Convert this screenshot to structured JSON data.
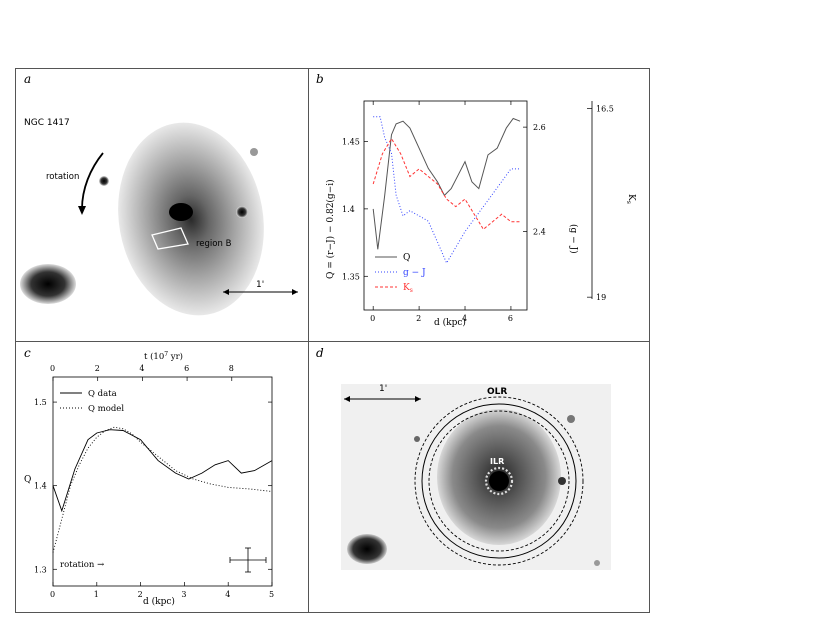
{
  "panels": {
    "a": {
      "label": "a",
      "galaxy_name": "NGC 1417",
      "rotation_label": "rotation",
      "region_label": "region B",
      "scale_label": "1'"
    },
    "b": {
      "label": "b",
      "ylabel_left": "Q = (r−J) − 0.82(g−i)",
      "ylabel_mid": "(g − J)",
      "ylabel_right": "K",
      "ylabel_right_sub": "s",
      "xlabel": "d (kpc)",
      "legend": [
        "Q",
        "g − J",
        "K"
      ],
      "legend_ks_sub": "s"
    },
    "c": {
      "label": "c",
      "top_axis_label": "t (10",
      "top_axis_exp": "7",
      "top_axis_unit": " yr)",
      "ylabel": "Q",
      "xlabel": "d (kpc)",
      "legend": [
        "Q data",
        "Q model"
      ],
      "rotation_label": "rotation →"
    },
    "d": {
      "label": "d",
      "scale_label": "1'",
      "olr_label": "OLR",
      "ilr_label": "ILR"
    }
  },
  "colors": {
    "q": "#555555",
    "gj": "#3344ff",
    "ks": "#ff3333"
  },
  "chart_data": [
    {
      "panel": "b",
      "type": "line",
      "xlabel": "d (kpc)",
      "xlim": [
        -0.4,
        6.7
      ],
      "x_ticks": [
        0,
        2,
        4,
        6
      ],
      "axes": {
        "left": {
          "label": "Q = (r−J) − 0.82(g−i)",
          "lim": [
            1.325,
            1.48
          ],
          "ticks": [
            1.35,
            1.4,
            1.45
          ]
        },
        "mid": {
          "label": "(g − J)",
          "lim": [
            2.25,
            2.65
          ],
          "ticks": [
            2.4,
            2.6
          ]
        },
        "right": {
          "label": "Ks",
          "lim": [
            19.17,
            16.4
          ],
          "ticks": [
            16.5,
            19
          ]
        }
      },
      "series": [
        {
          "name": "Q",
          "axis": "left",
          "style": "solid",
          "x": [
            0,
            0.2,
            0.5,
            0.8,
            1.0,
            1.3,
            1.6,
            2.0,
            2.4,
            2.8,
            3.1,
            3.4,
            3.7,
            4.0,
            4.3,
            4.6,
            5.0,
            5.4,
            5.8,
            6.1,
            6.4
          ],
          "y": [
            1.4,
            1.37,
            1.41,
            1.455,
            1.463,
            1.465,
            1.46,
            1.445,
            1.43,
            1.42,
            1.41,
            1.415,
            1.425,
            1.435,
            1.42,
            1.415,
            1.44,
            1.445,
            1.46,
            1.467,
            1.465
          ]
        },
        {
          "name": "g − J",
          "axis": "mid",
          "style": "dotted",
          "x": [
            0,
            0.3,
            0.5,
            0.8,
            1.0,
            1.3,
            1.6,
            2.0,
            2.4,
            2.8,
            3.2,
            3.6,
            4.0,
            4.5,
            5.0,
            5.5,
            6.0,
            6.4
          ],
          "y": [
            2.62,
            2.62,
            2.58,
            2.55,
            2.47,
            2.43,
            2.44,
            2.43,
            2.42,
            2.38,
            2.34,
            2.37,
            2.4,
            2.43,
            2.46,
            2.49,
            2.52,
            2.52
          ]
        },
        {
          "name": "Ks",
          "axis": "right",
          "style": "dashed",
          "x": [
            0,
            0.4,
            0.8,
            1.2,
            1.6,
            2.0,
            2.4,
            2.8,
            3.2,
            3.6,
            4.0,
            4.4,
            4.8,
            5.2,
            5.6,
            6.0,
            6.4
          ],
          "y": [
            17.5,
            17.1,
            16.9,
            17.1,
            17.4,
            17.3,
            17.4,
            17.5,
            17.7,
            17.8,
            17.7,
            17.9,
            18.1,
            18.0,
            17.9,
            18.0,
            18.0
          ]
        }
      ]
    },
    {
      "panel": "c",
      "type": "line",
      "xlabel": "d (kpc)",
      "ylabel": "Q",
      "xlim": [
        0,
        5
      ],
      "ylim": [
        1.28,
        1.53
      ],
      "x_ticks": [
        0,
        1,
        2,
        3,
        4,
        5
      ],
      "y_ticks": [
        1.3,
        1.4,
        1.5
      ],
      "top_axis": {
        "label": "t (10^7 yr)",
        "ticks": [
          0,
          2,
          4,
          6,
          8
        ],
        "lim": [
          0,
          9.8
        ]
      },
      "series": [
        {
          "name": "Q data",
          "style": "solid",
          "x": [
            0,
            0.2,
            0.5,
            0.8,
            1.0,
            1.3,
            1.6,
            2.0,
            2.4,
            2.8,
            3.1,
            3.4,
            3.7,
            4.0,
            4.3,
            4.6,
            5.0
          ],
          "y": [
            1.4,
            1.37,
            1.42,
            1.455,
            1.463,
            1.467,
            1.466,
            1.455,
            1.43,
            1.415,
            1.408,
            1.415,
            1.425,
            1.43,
            1.415,
            1.418,
            1.43
          ]
        },
        {
          "name": "Q model",
          "style": "dotted",
          "x": [
            0,
            0.2,
            0.4,
            0.6,
            0.8,
            1.0,
            1.2,
            1.4,
            1.6,
            1.8,
            2.0,
            2.4,
            2.8,
            3.2,
            3.6,
            4.0,
            4.5,
            5.0
          ],
          "y": [
            1.32,
            1.36,
            1.4,
            1.425,
            1.445,
            1.458,
            1.466,
            1.47,
            1.468,
            1.462,
            1.452,
            1.435,
            1.418,
            1.408,
            1.402,
            1.398,
            1.396,
            1.393
          ]
        }
      ]
    }
  ]
}
